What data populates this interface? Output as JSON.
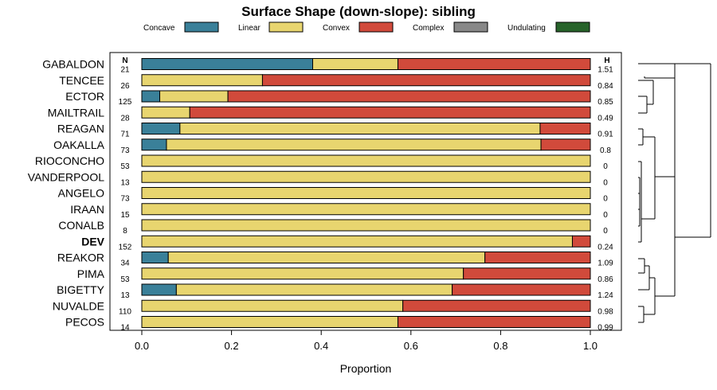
{
  "chart_data": {
    "type": "bar",
    "orientation": "horizontal",
    "stacked": true,
    "title": "Surface Shape (down-slope): sibling",
    "xlabel": "Proportion",
    "xlim": [
      0,
      1
    ],
    "x_ticks": [
      "0.0",
      "0.2",
      "0.4",
      "0.6",
      "0.8",
      "1.0"
    ],
    "n_header": "N",
    "h_header": "H",
    "legend": [
      {
        "name": "Concave",
        "color": "#3a8099"
      },
      {
        "name": "Linear",
        "color": "#e8d56f"
      },
      {
        "name": "Convex",
        "color": "#d14a3b"
      },
      {
        "name": "Complex",
        "color": "#888888"
      },
      {
        "name": "Undulating",
        "color": "#27632a"
      }
    ],
    "rows": [
      {
        "label": "GABALDON",
        "n": "21",
        "h": "1.51",
        "bold": false,
        "values": [
          0.381,
          0.19,
          0.429,
          0,
          0
        ]
      },
      {
        "label": "TENCEE",
        "n": "26",
        "h": "0.84",
        "bold": false,
        "values": [
          0,
          0.269,
          0.731,
          0,
          0
        ]
      },
      {
        "label": "ECTOR",
        "n": "125",
        "h": "0.85",
        "bold": false,
        "values": [
          0.04,
          0.152,
          0.808,
          0,
          0
        ]
      },
      {
        "label": "MAILTRAIL",
        "n": "28",
        "h": "0.49",
        "bold": false,
        "values": [
          0,
          0.107,
          0.893,
          0,
          0
        ]
      },
      {
        "label": "REAGAN",
        "n": "71",
        "h": "0.91",
        "bold": false,
        "values": [
          0.085,
          0.803,
          0.112,
          0,
          0
        ]
      },
      {
        "label": "OAKALLA",
        "n": "73",
        "h": "0.8",
        "bold": false,
        "values": [
          0.055,
          0.835,
          0.11,
          0,
          0
        ]
      },
      {
        "label": "RIOCONCHO",
        "n": "53",
        "h": "0",
        "bold": false,
        "values": [
          0,
          1,
          0,
          0,
          0
        ]
      },
      {
        "label": "VANDERPOOL",
        "n": "13",
        "h": "0",
        "bold": false,
        "values": [
          0,
          1,
          0,
          0,
          0
        ]
      },
      {
        "label": "ANGELO",
        "n": "73",
        "h": "0",
        "bold": false,
        "values": [
          0,
          1,
          0,
          0,
          0
        ]
      },
      {
        "label": "IRAAN",
        "n": "15",
        "h": "0",
        "bold": false,
        "values": [
          0,
          1,
          0,
          0,
          0
        ]
      },
      {
        "label": "CONALB",
        "n": "8",
        "h": "0",
        "bold": false,
        "values": [
          0,
          1,
          0,
          0,
          0
        ]
      },
      {
        "label": "DEV",
        "n": "152",
        "h": "0.24",
        "bold": true,
        "values": [
          0,
          0.96,
          0.04,
          0,
          0
        ]
      },
      {
        "label": "REAKOR",
        "n": "34",
        "h": "1.09",
        "bold": false,
        "values": [
          0.059,
          0.706,
          0.235,
          0,
          0
        ]
      },
      {
        "label": "PIMA",
        "n": "53",
        "h": "0.86",
        "bold": false,
        "values": [
          0,
          0.717,
          0.283,
          0,
          0
        ]
      },
      {
        "label": "BIGETTY",
        "n": "13",
        "h": "1.24",
        "bold": false,
        "values": [
          0.077,
          0.615,
          0.308,
          0,
          0
        ]
      },
      {
        "label": "NUVALDE",
        "n": "110",
        "h": "0.98",
        "bold": false,
        "values": [
          0,
          0.582,
          0.418,
          0,
          0
        ]
      },
      {
        "label": "PECOS",
        "n": "14",
        "h": "0.99",
        "bold": false,
        "values": [
          0,
          0.571,
          0.429,
          0,
          0
        ]
      }
    ]
  }
}
